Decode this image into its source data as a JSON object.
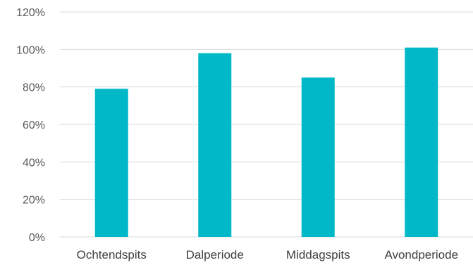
{
  "chart_data": {
    "type": "bar",
    "title": "",
    "xlabel": "",
    "ylabel": "",
    "categories": [
      "Ochtendspits",
      "Dalperiode",
      "Middagspits",
      "Avondperiode"
    ],
    "values": [
      0.79,
      0.98,
      0.85,
      1.01
    ],
    "ylim": [
      0,
      1.2
    ],
    "yticks": [
      {
        "value": 0,
        "label": "0%"
      },
      {
        "value": 0.2,
        "label": "20%"
      },
      {
        "value": 0.4,
        "label": "40%"
      },
      {
        "value": 0.6,
        "label": "60%"
      },
      {
        "value": 0.8,
        "label": "80%"
      },
      {
        "value": 1.0,
        "label": "100%"
      },
      {
        "value": 1.2,
        "label": "120%"
      }
    ],
    "grid": true,
    "legend": "none",
    "bar_color": "#00B8C8",
    "grid_color": "#D9D9D9"
  }
}
